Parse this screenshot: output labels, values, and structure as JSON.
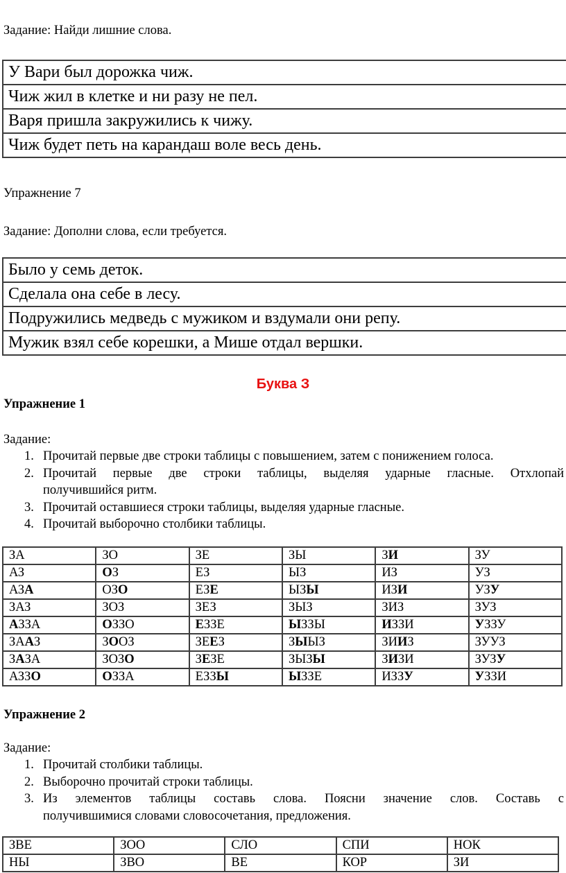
{
  "colors": {
    "heading_red": "#e81111"
  },
  "intro": {
    "task": "Задание: Найди лишние слова."
  },
  "sentence_table_1": {
    "rows": [
      [
        "У Вари был дорожка чиж."
      ],
      [
        "Чиж жил в клетке и ни разу не пел."
      ],
      [
        "Варя пришла закружились к чижу."
      ],
      [
        "Чиж будет петь на карандаш воле весь день."
      ]
    ]
  },
  "exercise7": {
    "title": "Упражнение 7",
    "task": "Задание: Дополни слова, если требуется."
  },
  "sentence_table_2": {
    "rows": [
      [
        "Было у семь деток."
      ],
      [
        "Сделала она себе в лесу."
      ],
      [
        "Подружились медведь с мужиком и вздумали они репу."
      ],
      [
        "Мужик взял себе корешки, а Мише отдал вершки."
      ]
    ]
  },
  "letter_section": {
    "heading": "Буква З"
  },
  "exercise1": {
    "title": "Упражнение 1",
    "task_label": "Задание:",
    "items": [
      {
        "num": "1.",
        "lines": [
          "Прочитай первые две строки таблицы с повышением, затем с понижением голоса."
        ]
      },
      {
        "num": "2.",
        "lines": [
          "Прочитай первые две строки таблицы, выделяя ударные гласные. Отхлопай",
          "получившийся ритм."
        ]
      },
      {
        "num": "3.",
        "lines": [
          "Прочитай оставшиеся строки таблицы, выделяя ударные гласные."
        ]
      },
      {
        "num": "4.",
        "lines": [
          "Прочитай выборочно столбики таблицы."
        ]
      }
    ]
  },
  "syllable_table": {
    "rows": [
      [
        [
          {
            "t": "ЗА"
          }
        ],
        [
          {
            "t": "ЗО"
          }
        ],
        [
          {
            "t": "ЗЕ"
          }
        ],
        [
          {
            "t": "ЗЫ"
          }
        ],
        [
          {
            "t": "З"
          },
          {
            "t": "И",
            "b": true
          }
        ],
        [
          {
            "t": "ЗУ"
          }
        ]
      ],
      [
        [
          {
            "t": "АЗ"
          }
        ],
        [
          {
            "t": "О",
            "b": true
          },
          {
            "t": "З"
          }
        ],
        [
          {
            "t": "ЕЗ"
          }
        ],
        [
          {
            "t": "ЫЗ"
          }
        ],
        [
          {
            "t": "ИЗ"
          }
        ],
        [
          {
            "t": "УЗ"
          }
        ]
      ],
      [
        [
          {
            "t": "АЗ"
          },
          {
            "t": "А",
            "b": true
          }
        ],
        [
          {
            "t": "ОЗ"
          },
          {
            "t": "О",
            "b": true
          }
        ],
        [
          {
            "t": "ЕЗ"
          },
          {
            "t": "Е",
            "b": true
          }
        ],
        [
          {
            "t": "ЫЗ"
          },
          {
            "t": "Ы",
            "b": true
          }
        ],
        [
          {
            "t": "ИЗ"
          },
          {
            "t": "И",
            "b": true
          }
        ],
        [
          {
            "t": "УЗ"
          },
          {
            "t": "У",
            "b": true
          }
        ]
      ],
      [
        [
          {
            "t": "ЗАЗ"
          }
        ],
        [
          {
            "t": "ЗОЗ"
          }
        ],
        [
          {
            "t": "ЗЕЗ"
          }
        ],
        [
          {
            "t": "ЗЫЗ"
          }
        ],
        [
          {
            "t": "ЗИЗ"
          }
        ],
        [
          {
            "t": "ЗУЗ"
          }
        ]
      ],
      [
        [
          {
            "t": "А",
            "b": true
          },
          {
            "t": "ЗЗА"
          }
        ],
        [
          {
            "t": "О",
            "b": true
          },
          {
            "t": "ЗЗО"
          }
        ],
        [
          {
            "t": "Е",
            "b": true
          },
          {
            "t": "ЗЗЕ"
          }
        ],
        [
          {
            "t": "Ы",
            "b": true
          },
          {
            "t": "ЗЗЫ"
          }
        ],
        [
          {
            "t": "И",
            "b": true
          },
          {
            "t": "ЗЗИ"
          }
        ],
        [
          {
            "t": "У",
            "b": true
          },
          {
            "t": "ЗЗУ"
          }
        ]
      ],
      [
        [
          {
            "t": "ЗА"
          },
          {
            "t": "А",
            "b": true
          },
          {
            "t": "З"
          }
        ],
        [
          {
            "t": "З"
          },
          {
            "t": "О",
            "b": true
          },
          {
            "t": "ОЗ"
          }
        ],
        [
          {
            "t": "ЗЕ"
          },
          {
            "t": "Е",
            "b": true
          },
          {
            "t": "З"
          }
        ],
        [
          {
            "t": "З"
          },
          {
            "t": "Ы",
            "b": true
          },
          {
            "t": "ЫЗ"
          }
        ],
        [
          {
            "t": "ЗИ"
          },
          {
            "t": "И",
            "b": true
          },
          {
            "t": "З"
          }
        ],
        [
          {
            "t": "ЗУУЗ"
          }
        ]
      ],
      [
        [
          {
            "t": "З"
          },
          {
            "t": "А",
            "b": true
          },
          {
            "t": "ЗА"
          }
        ],
        [
          {
            "t": "ЗОЗ"
          },
          {
            "t": "О",
            "b": true
          }
        ],
        [
          {
            "t": "З"
          },
          {
            "t": "Е",
            "b": true
          },
          {
            "t": "ЗЕ"
          }
        ],
        [
          {
            "t": "ЗЫЗ"
          },
          {
            "t": "Ы",
            "b": true
          }
        ],
        [
          {
            "t": "З"
          },
          {
            "t": "И",
            "b": true
          },
          {
            "t": "ЗИ"
          }
        ],
        [
          {
            "t": "ЗУЗ"
          },
          {
            "t": "У",
            "b": true
          }
        ]
      ],
      [
        [
          {
            "t": "АЗЗ"
          },
          {
            "t": "О",
            "b": true
          }
        ],
        [
          {
            "t": "О",
            "b": true
          },
          {
            "t": "ЗЗА"
          }
        ],
        [
          {
            "t": "ЕЗЗ"
          },
          {
            "t": "Ы",
            "b": true
          }
        ],
        [
          {
            "t": "Ы",
            "b": true
          },
          {
            "t": "ЗЗЕ"
          }
        ],
        [
          {
            "t": "ИЗЗ"
          },
          {
            "t": "У",
            "b": true
          }
        ],
        [
          {
            "t": "У",
            "b": true
          },
          {
            "t": "ЗЗИ"
          }
        ]
      ]
    ]
  },
  "exercise2": {
    "title": "Упражнение 2",
    "task_label": "Задание:",
    "items": [
      {
        "num": "1.",
        "lines": [
          "Прочитай столбики таблицы."
        ]
      },
      {
        "num": "2.",
        "lines": [
          "Выборочно прочитай строки таблицы."
        ]
      },
      {
        "num": "3.",
        "lines": [
          "Из элементов таблицы составь слова. Поясни значение слов. Составь с",
          "получившимися словами словосочетания, предложения."
        ]
      }
    ]
  },
  "word_parts_table": {
    "rows": [
      [
        [
          {
            "t": "ЗВЕ"
          }
        ],
        [
          {
            "t": "ЗОО"
          }
        ],
        [
          {
            "t": "СЛО"
          }
        ],
        [
          {
            "t": "СПИ"
          }
        ],
        [
          {
            "t": "НОК"
          }
        ]
      ],
      [
        [
          {
            "t": "НЫ"
          }
        ],
        [
          {
            "t": "ЗВО"
          }
        ],
        [
          {
            "t": "ВЕ"
          }
        ],
        [
          {
            "t": "КОР"
          }
        ],
        [
          {
            "t": "ЗИ"
          }
        ]
      ]
    ]
  }
}
